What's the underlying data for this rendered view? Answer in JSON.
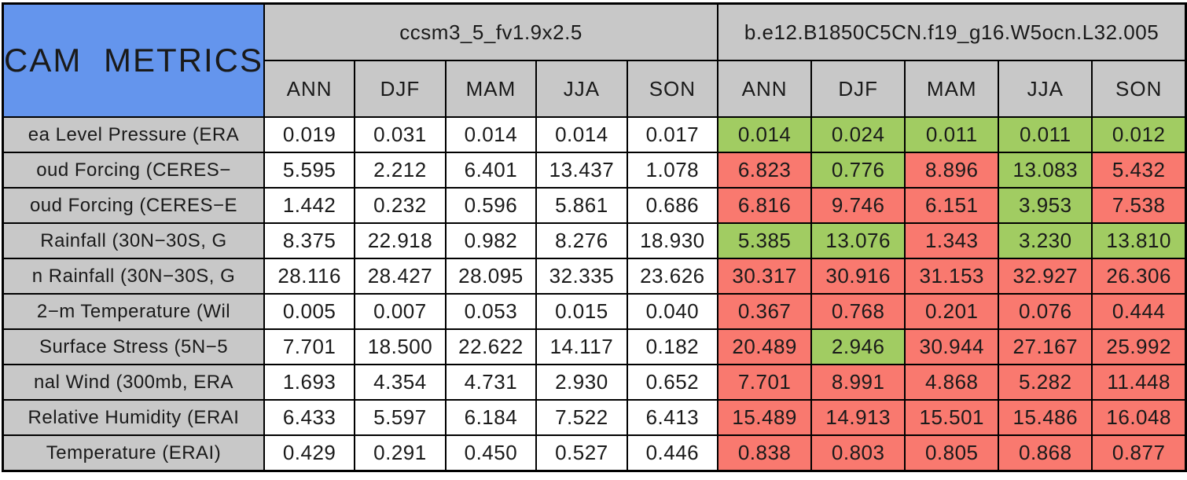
{
  "chart_data": {
    "type": "table",
    "title": "CAM METRICS",
    "column_groups": [
      {
        "name": "ccsm3_5_fv1.9x2.5",
        "columns": [
          "ANN",
          "DJF",
          "MAM",
          "JJA",
          "SON"
        ]
      },
      {
        "name": "b.e12.B1850C5CN.f19_g16.W5ocn.L32.005",
        "columns": [
          "ANN",
          "DJF",
          "MAM",
          "JJA",
          "SON"
        ]
      }
    ],
    "rows": [
      {
        "label": "ea Level Pressure (ERA",
        "group1_values": [
          "0.019",
          "0.031",
          "0.014",
          "0.014",
          "0.017"
        ],
        "group2_values": [
          "0.014",
          "0.024",
          "0.011",
          "0.011",
          "0.012"
        ],
        "group2_colors": [
          "green",
          "green",
          "green",
          "green",
          "green"
        ]
      },
      {
        "label": "oud Forcing (CERES−",
        "group1_values": [
          "5.595",
          "2.212",
          "6.401",
          "13.437",
          "1.078"
        ],
        "group2_values": [
          "6.823",
          "0.776",
          "8.896",
          "13.083",
          "5.432"
        ],
        "group2_colors": [
          "red",
          "green",
          "red",
          "green",
          "red"
        ]
      },
      {
        "label": "oud Forcing (CERES−E",
        "group1_values": [
          "1.442",
          "0.232",
          "0.596",
          "5.861",
          "0.686"
        ],
        "group2_values": [
          "6.816",
          "9.746",
          "6.151",
          "3.953",
          "7.538"
        ],
        "group2_colors": [
          "red",
          "red",
          "red",
          "green",
          "red"
        ]
      },
      {
        "label": "Rainfall (30N−30S, G",
        "group1_values": [
          "8.375",
          "22.918",
          "0.982",
          "8.276",
          "18.930"
        ],
        "group2_values": [
          "5.385",
          "13.076",
          "1.343",
          "3.230",
          "13.810"
        ],
        "group2_colors": [
          "green",
          "green",
          "red",
          "green",
          "green"
        ]
      },
      {
        "label": "n Rainfall (30N−30S, G",
        "group1_values": [
          "28.116",
          "28.427",
          "28.095",
          "32.335",
          "23.626"
        ],
        "group2_values": [
          "30.317",
          "30.916",
          "31.153",
          "32.927",
          "26.306"
        ],
        "group2_colors": [
          "red",
          "red",
          "red",
          "red",
          "red"
        ]
      },
      {
        "label": "2−m Temperature (Wil",
        "group1_values": [
          "0.005",
          "0.007",
          "0.053",
          "0.015",
          "0.040"
        ],
        "group2_values": [
          "0.367",
          "0.768",
          "0.201",
          "0.076",
          "0.444"
        ],
        "group2_colors": [
          "red",
          "red",
          "red",
          "red",
          "red"
        ]
      },
      {
        "label": "Surface Stress (5N−5",
        "group1_values": [
          "7.701",
          "18.500",
          "22.622",
          "14.117",
          "0.182"
        ],
        "group2_values": [
          "20.489",
          "2.946",
          "30.944",
          "27.167",
          "25.992"
        ],
        "group2_colors": [
          "red",
          "green",
          "red",
          "red",
          "red"
        ]
      },
      {
        "label": "nal Wind (300mb, ERA",
        "group1_values": [
          "1.693",
          "4.354",
          "4.731",
          "2.930",
          "0.652"
        ],
        "group2_values": [
          "7.701",
          "8.991",
          "4.868",
          "5.282",
          "11.448"
        ],
        "group2_colors": [
          "red",
          "red",
          "red",
          "red",
          "red"
        ]
      },
      {
        "label": "Relative Humidity (ERAI",
        "group1_values": [
          "6.433",
          "5.597",
          "6.184",
          "7.522",
          "6.413"
        ],
        "group2_values": [
          "15.489",
          "14.913",
          "15.501",
          "15.486",
          "16.048"
        ],
        "group2_colors": [
          "red",
          "red",
          "red",
          "red",
          "red"
        ]
      },
      {
        "label": "Temperature (ERAI)",
        "group1_values": [
          "0.429",
          "0.291",
          "0.450",
          "0.527",
          "0.446"
        ],
        "group2_values": [
          "0.838",
          "0.803",
          "0.805",
          "0.868",
          "0.877"
        ],
        "group2_colors": [
          "red",
          "red",
          "red",
          "red",
          "red"
        ]
      }
    ]
  },
  "colors": {
    "header_blue": "#6495ED",
    "header_gray": "#C8C8C8",
    "cell_green": "#A1CC62",
    "cell_red": "#F9796F",
    "cell_white": "#FFFFFF",
    "border": "#000000",
    "text": "#1A1A1A",
    "background": "#FFFFFF"
  }
}
